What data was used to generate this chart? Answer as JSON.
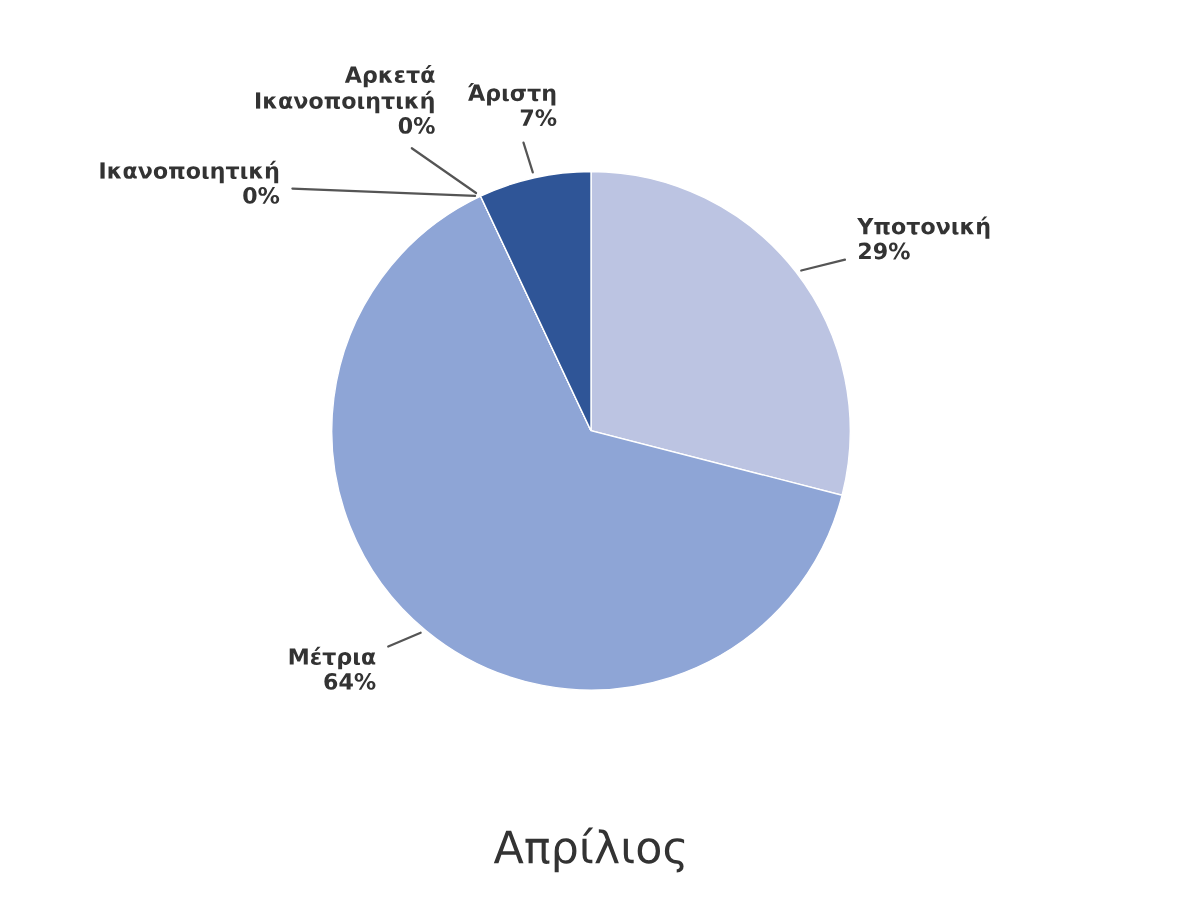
{
  "chart_data": {
    "type": "pie",
    "title": "Απρίλιος",
    "categories": [
      "Υποτονική",
      "Μέτρια",
      "Ικανοποιητική",
      "Αρκετά\nΙκανοποιητική",
      "Άριστη"
    ],
    "values": [
      29,
      64,
      0,
      0,
      7
    ],
    "value_labels": [
      "29%",
      "64%",
      "0%",
      "0%",
      "7%"
    ],
    "colors": [
      "#bcc4e2",
      "#8ea5d6",
      "#6f87c0",
      "#4a6aa8",
      "#2f5597"
    ]
  }
}
